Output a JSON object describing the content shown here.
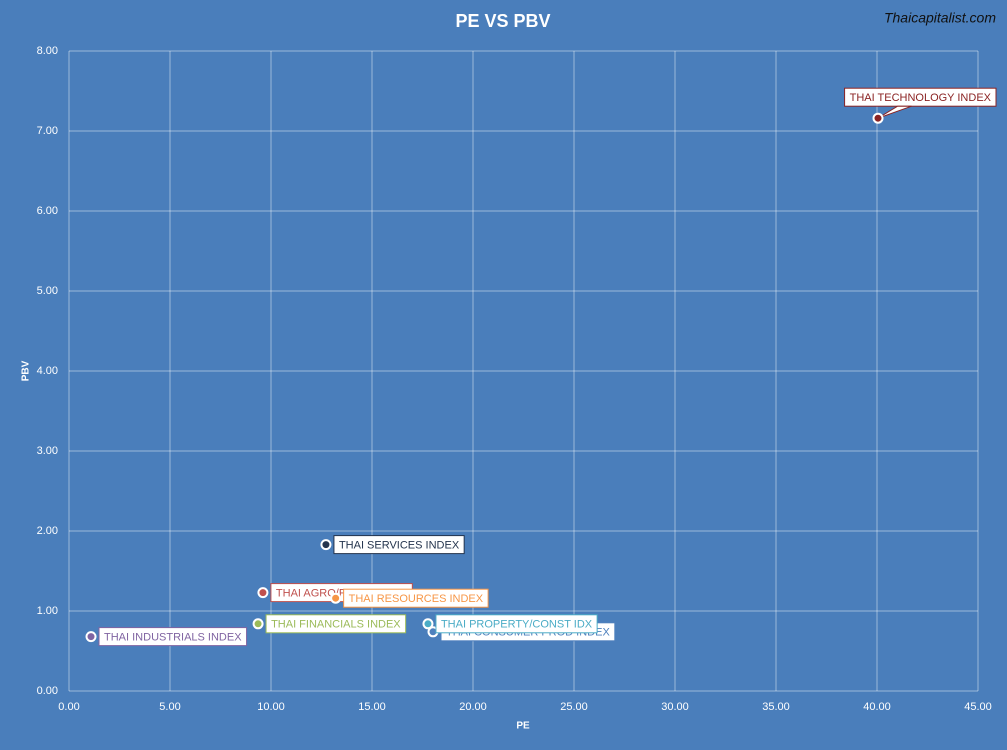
{
  "chart_data": {
    "type": "scatter",
    "title": "PE VS PBV",
    "watermark": "Thaicapitalist.com",
    "x_label": "PE",
    "y_label": "PBV",
    "xlim": [
      0,
      45
    ],
    "ylim": [
      0,
      8
    ],
    "xticks": [
      {
        "value": 0,
        "label": "0.00"
      },
      {
        "value": 5,
        "label": "5.00"
      },
      {
        "value": 10,
        "label": "10.00"
      },
      {
        "value": 15,
        "label": "15.00"
      },
      {
        "value": 20,
        "label": "20.00"
      },
      {
        "value": 25,
        "label": "25.00"
      },
      {
        "value": 30,
        "label": "30.00"
      },
      {
        "value": 35,
        "label": "35.00"
      },
      {
        "value": 40,
        "label": "40.00"
      },
      {
        "value": 45,
        "label": "45.00"
      }
    ],
    "yticks": [
      {
        "value": 0,
        "label": "0.00"
      },
      {
        "value": 1,
        "label": "1.00"
      },
      {
        "value": 2,
        "label": "2.00"
      },
      {
        "value": 3,
        "label": "3.00"
      },
      {
        "value": 4,
        "label": "4.00"
      },
      {
        "value": 5,
        "label": "5.00"
      },
      {
        "value": 6,
        "label": "6.00"
      },
      {
        "value": 7,
        "label": "7.00"
      },
      {
        "value": 8,
        "label": "8.00"
      }
    ],
    "grid": true,
    "series": [
      {
        "name": "THAI TECHNOLOGY INDEX",
        "color": "#8b2323",
        "x": [
          40.05
        ],
        "values": [
          7.16
        ]
      },
      {
        "name": "THAI SERVICES INDEX",
        "color": "#24344d",
        "x": [
          12.72
        ],
        "values": [
          1.83
        ]
      },
      {
        "name": "THAI AGRO/FOOD INDEX",
        "color": "#c0504d",
        "x": [
          9.6
        ],
        "values": [
          1.23
        ]
      },
      {
        "name": "THAI RESOURCES INDEX",
        "color": "#f79646",
        "x": [
          13.2
        ],
        "values": [
          1.16
        ]
      },
      {
        "name": "THAI INDUSTRIALS INDEX",
        "color": "#8064a2",
        "x": [
          1.09
        ],
        "values": [
          0.68
        ]
      },
      {
        "name": "THAI FINANCIALS INDEX",
        "color": "#9bbb59",
        "x": [
          9.36
        ],
        "values": [
          0.84
        ]
      },
      {
        "name": "THAI CONSUMER PROD INDEX",
        "color": "#4f81bd",
        "x": [
          18.02
        ],
        "values": [
          0.74
        ]
      },
      {
        "name": "THAI PROPERTY/CONST IDX",
        "color": "#4bacc6",
        "x": [
          17.77
        ],
        "values": [
          0.84
        ]
      }
    ]
  }
}
